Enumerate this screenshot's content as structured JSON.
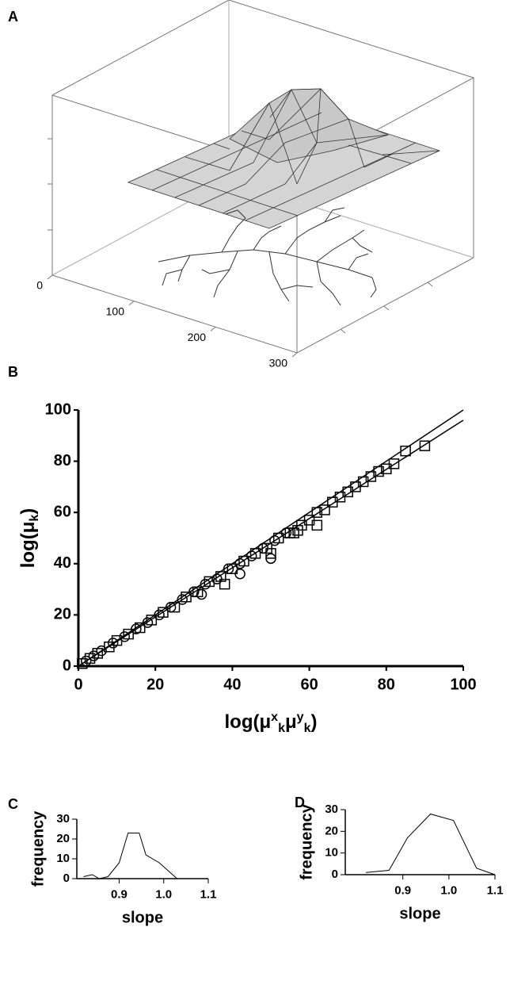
{
  "chart_data": [
    {
      "panel": "A",
      "type": "surface",
      "xlim": [
        0,
        300
      ],
      "xticks": [
        0,
        100,
        200,
        300
      ]
    },
    {
      "panel": "B",
      "type": "scatter",
      "xlabel_parts": [
        "log(μ",
        "x",
        "k",
        "μ",
        "y",
        "k",
        ")"
      ],
      "ylabel_parts": [
        "log(μ",
        "k",
        ")"
      ],
      "xlim": [
        0,
        100
      ],
      "ylim": [
        0,
        100
      ],
      "xticks": [
        0,
        20,
        40,
        60,
        80,
        100
      ],
      "yticks": [
        0,
        20,
        40,
        60,
        80,
        100
      ],
      "color": "#000000",
      "series": [
        {
          "marker": "square",
          "x": [
            1,
            3,
            5,
            8,
            10,
            13,
            16,
            19,
            22,
            25,
            28,
            31,
            34,
            37,
            40,
            43,
            46,
            49,
            52,
            55,
            57,
            58,
            60,
            62,
            64,
            66,
            68,
            70,
            72,
            74,
            76,
            78,
            80,
            82,
            85,
            90,
            56,
            62,
            50,
            38
          ],
          "values": [
            1,
            3,
            5,
            7.5,
            10,
            12.5,
            15,
            18,
            21,
            23,
            27,
            29,
            33,
            35,
            38,
            41,
            44,
            46,
            50,
            52,
            53,
            55,
            57,
            60,
            61,
            64,
            66,
            68,
            70,
            72,
            74,
            76,
            77,
            79,
            84,
            86,
            52,
            55,
            44,
            32
          ]
        },
        {
          "marker": "circle",
          "x": [
            2,
            4,
            6,
            9,
            12,
            15,
            18,
            21,
            24,
            27,
            30,
            33,
            36,
            39,
            42,
            45,
            48,
            51,
            54,
            32,
            42,
            50
          ],
          "values": [
            2,
            4,
            6,
            9,
            11.5,
            14.5,
            17,
            20,
            23,
            26,
            29,
            32,
            34,
            38,
            40,
            43,
            46,
            49,
            52,
            28,
            36,
            42
          ]
        }
      ],
      "lines": [
        {
          "x": [
            0,
            100
          ],
          "values": [
            0,
            100
          ]
        },
        {
          "x": [
            0,
            100
          ],
          "values": [
            0,
            96
          ]
        }
      ]
    },
    {
      "panel": "C",
      "type": "line",
      "xlabel": "slope",
      "ylabel": "frequency",
      "xlim": [
        0.805,
        1.1
      ],
      "ylim": [
        0,
        30
      ],
      "xticks": [
        0.9,
        {
          "value": 1,
          "label": "1.0"
        },
        1.1
      ],
      "yticks": [
        0,
        10,
        20,
        30
      ],
      "color": "#000000",
      "x": [
        0.82,
        0.84,
        0.855,
        0.875,
        0.9,
        0.92,
        0.945,
        0.96,
        0.99,
        1.03
      ],
      "values": [
        1,
        2,
        0,
        1,
        8,
        23,
        23,
        12,
        8,
        0
      ]
    },
    {
      "panel": "D",
      "type": "line",
      "xlabel": "slope",
      "ylabel": "frequency",
      "xlim": [
        0.775,
        1.1
      ],
      "ylim": [
        0,
        30
      ],
      "xticks": [
        0.9,
        {
          "value": 1,
          "label": "1.0"
        },
        1.1
      ],
      "yticks": [
        0,
        10,
        20,
        30
      ],
      "color": "#000000",
      "x": [
        0.82,
        0.87,
        0.91,
        0.96,
        1.01,
        1.06,
        1.1
      ],
      "values": [
        1,
        2,
        17,
        28,
        25,
        3,
        0
      ]
    }
  ]
}
